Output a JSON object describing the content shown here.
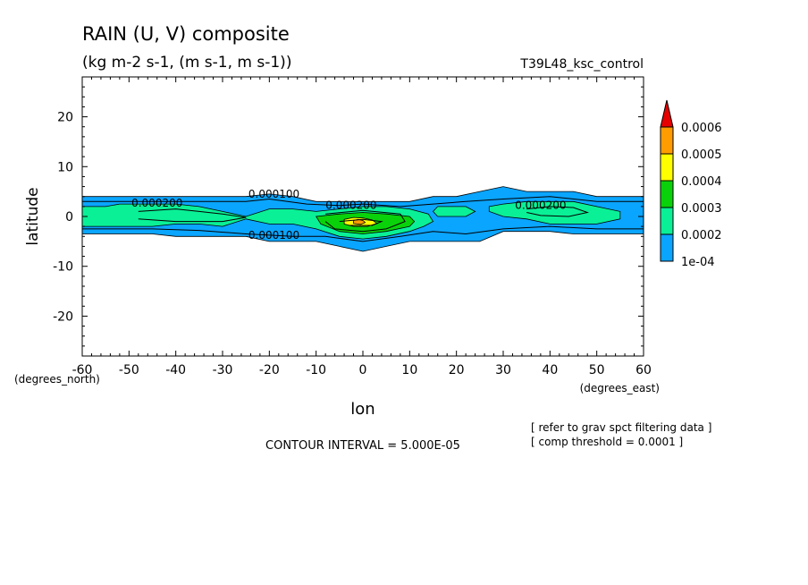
{
  "chart_data": {
    "type": "contour",
    "title": "RAIN (U, V) composite",
    "subtitle": "(kg m-2 s-1, (m s-1, m s-1))",
    "run_label": "T39L48_ksc_control",
    "xlabel": "lon",
    "ylabel": "latitude",
    "x_unit_label": "(degrees_east)",
    "y_unit_label": "(degrees_north)",
    "xlim": [
      -60,
      60
    ],
    "ylim": [
      -28,
      28
    ],
    "xticks": [
      -60,
      -50,
      -40,
      -30,
      -20,
      -10,
      0,
      10,
      20,
      30,
      40,
      50,
      60
    ],
    "yticks": [
      -20,
      -10,
      0,
      10,
      20
    ],
    "contour_interval_text": "CONTOUR INTERVAL = 5.000E-05",
    "notes": [
      "[ refer to grav spct filtering data ]",
      "[ comp threshold = 0.0001 ]"
    ],
    "colorbar": {
      "levels": [
        "1e-04",
        "0.0002",
        "0.0003",
        "0.0004",
        "0.0005",
        "0.0006"
      ],
      "colors": [
        "#0aa5ff",
        "#0af096",
        "#0ad20a",
        "#ffff00",
        "#ff9c00",
        "#e60000"
      ]
    },
    "contour_labels": [
      {
        "text": "0.000200",
        "lon": -44,
        "lat": 2
      },
      {
        "text": "0.000100",
        "lon": -19,
        "lat": 3.8
      },
      {
        "text": "0.000200",
        "lon": -2.5,
        "lat": 1.5
      },
      {
        "text": "0.000200",
        "lon": 38,
        "lat": 1.5
      },
      {
        "text": "0.000100",
        "lon": -19,
        "lat": -4.5
      }
    ],
    "filled_regions": [
      {
        "level": "1e-04",
        "color": "#0aa5ff",
        "boundary": [
          [
            -60,
            4
          ],
          [
            -55,
            4
          ],
          [
            -50,
            4
          ],
          [
            -45,
            4
          ],
          [
            -40,
            4
          ],
          [
            -35,
            4
          ],
          [
            -30,
            4
          ],
          [
            -25,
            4
          ],
          [
            -20,
            4.5
          ],
          [
            -15,
            4
          ],
          [
            -10,
            3
          ],
          [
            -5,
            3
          ],
          [
            0,
            3
          ],
          [
            5,
            3
          ],
          [
            10,
            3
          ],
          [
            15,
            4
          ],
          [
            20,
            4
          ],
          [
            25,
            5
          ],
          [
            30,
            6
          ],
          [
            35,
            5
          ],
          [
            40,
            5
          ],
          [
            45,
            5
          ],
          [
            50,
            4
          ],
          [
            55,
            4
          ],
          [
            60,
            4
          ],
          [
            60,
            -3.5
          ],
          [
            55,
            -3.5
          ],
          [
            50,
            -3.5
          ],
          [
            45,
            -3.5
          ],
          [
            40,
            -3
          ],
          [
            35,
            -3
          ],
          [
            30,
            -3
          ],
          [
            25,
            -5
          ],
          [
            20,
            -5
          ],
          [
            15,
            -5
          ],
          [
            10,
            -5
          ],
          [
            5,
            -6
          ],
          [
            0,
            -7
          ],
          [
            -5,
            -6
          ],
          [
            -10,
            -5
          ],
          [
            -15,
            -5
          ],
          [
            -20,
            -5
          ],
          [
            -25,
            -4
          ],
          [
            -30,
            -4
          ],
          [
            -35,
            -4
          ],
          [
            -40,
            -4
          ],
          [
            -45,
            -3.5
          ],
          [
            -50,
            -3.5
          ],
          [
            -55,
            -3.5
          ],
          [
            -60,
            -3.5
          ]
        ]
      },
      {
        "level": "0.0002",
        "color": "#0af096",
        "boundary": [
          [
            -60,
            2
          ],
          [
            -55,
            2
          ],
          [
            -52,
            2.5
          ],
          [
            -45,
            2.5
          ],
          [
            -40,
            2.5
          ],
          [
            -35,
            2
          ],
          [
            -30,
            1
          ],
          [
            -25,
            0
          ],
          [
            -20,
            1.5
          ],
          [
            -15,
            1.5
          ],
          [
            -10,
            1
          ],
          [
            -5,
            1.5
          ],
          [
            0,
            2
          ],
          [
            5,
            2
          ],
          [
            10,
            1.5
          ],
          [
            14,
            0.5
          ],
          [
            15,
            -1
          ],
          [
            13,
            -2
          ],
          [
            10,
            -3
          ],
          [
            5,
            -4
          ],
          [
            0,
            -4.5
          ],
          [
            -5,
            -4
          ],
          [
            -10,
            -2.5
          ],
          [
            -15,
            -1.5
          ],
          [
            -20,
            -1.5
          ],
          [
            -25,
            -0.5
          ],
          [
            -30,
            -2
          ],
          [
            -35,
            -1.5
          ],
          [
            -40,
            -1.5
          ],
          [
            -45,
            -2
          ],
          [
            -50,
            -2
          ],
          [
            -55,
            -2
          ],
          [
            -60,
            -2
          ]
        ]
      },
      {
        "level": "0.0002",
        "color": "#0af096",
        "boundary": [
          [
            16,
            2
          ],
          [
            22,
            2
          ],
          [
            24,
            1
          ],
          [
            22,
            0
          ],
          [
            16,
            0
          ],
          [
            15,
            1
          ]
        ]
      },
      {
        "level": "0.0002",
        "color": "#0af096",
        "boundary": [
          [
            27,
            2
          ],
          [
            30,
            2.5
          ],
          [
            35,
            3
          ],
          [
            40,
            3
          ],
          [
            45,
            3
          ],
          [
            50,
            2
          ],
          [
            55,
            1
          ],
          [
            55,
            -0.5
          ],
          [
            50,
            -1.5
          ],
          [
            45,
            -1.5
          ],
          [
            40,
            -1.5
          ],
          [
            35,
            -0.5
          ],
          [
            30,
            0
          ],
          [
            27,
            1
          ]
        ]
      },
      {
        "level": "0.0003",
        "color": "#0ad20a",
        "boundary": [
          [
            -10,
            0
          ],
          [
            -5,
            0.5
          ],
          [
            0,
            0.8
          ],
          [
            5,
            0.5
          ],
          [
            10,
            0
          ],
          [
            11,
            -1
          ],
          [
            10,
            -2
          ],
          [
            5,
            -3
          ],
          [
            0,
            -3.5
          ],
          [
            -5,
            -3
          ],
          [
            -9,
            -1.5
          ]
        ]
      },
      {
        "level": "0.0004",
        "color": "#ffff00",
        "boundary": [
          [
            -4,
            -0.6
          ],
          [
            -2,
            -0.2
          ],
          [
            0,
            -0.3
          ],
          [
            2,
            -0.7
          ],
          [
            3,
            -1.4
          ],
          [
            1,
            -2
          ],
          [
            -2,
            -2
          ],
          [
            -4,
            -1.5
          ]
        ]
      },
      {
        "level": "0.0005",
        "color": "#ff9c00",
        "boundary": [
          [
            -2,
            -0.8
          ],
          [
            -1,
            -0.6
          ],
          [
            0,
            -0.8
          ],
          [
            0.5,
            -1.2
          ],
          [
            -0.5,
            -1.6
          ],
          [
            -2,
            -1.4
          ]
        ]
      }
    ],
    "contour_lines": [
      [
        [
          -60,
          3
        ],
        [
          -45,
          3
        ],
        [
          -35,
          3
        ],
        [
          -25,
          3
        ],
        [
          -20,
          3.5
        ],
        [
          -12,
          2.5
        ],
        [
          -5,
          2.2
        ],
        [
          0,
          2.5
        ],
        [
          8,
          2
        ],
        [
          15,
          2.5
        ],
        [
          22,
          3
        ],
        [
          30,
          3.5
        ],
        [
          40,
          4
        ],
        [
          50,
          3
        ],
        [
          60,
          3
        ]
      ],
      [
        [
          -60,
          -2.5
        ],
        [
          -45,
          -2.5
        ],
        [
          -35,
          -2.8
        ],
        [
          -25,
          -3.5
        ],
        [
          -15,
          -4
        ],
        [
          -8,
          -4
        ],
        [
          0,
          -5
        ],
        [
          8,
          -4
        ],
        [
          15,
          -3
        ],
        [
          22,
          -3.5
        ],
        [
          30,
          -2.5
        ],
        [
          40,
          -2
        ],
        [
          50,
          -2.5
        ],
        [
          60,
          -2.5
        ]
      ],
      [
        [
          -48,
          1
        ],
        [
          -40,
          1.5
        ],
        [
          -35,
          1
        ],
        [
          -30,
          0.5
        ],
        [
          -25,
          -0.2
        ],
        [
          -30,
          -1
        ],
        [
          -40,
          -1
        ],
        [
          -48,
          -0.5
        ]
      ],
      [
        [
          -8,
          0.5
        ],
        [
          0,
          1.2
        ],
        [
          8,
          0.5
        ],
        [
          9,
          -1
        ],
        [
          5,
          -2.5
        ],
        [
          0,
          -3
        ],
        [
          -6,
          -2.5
        ],
        [
          -8,
          -1
        ]
      ],
      [
        [
          35,
          1.5
        ],
        [
          40,
          2
        ],
        [
          45,
          1.8
        ],
        [
          48,
          0.8
        ],
        [
          44,
          0
        ],
        [
          38,
          0.2
        ],
        [
          35,
          0.8
        ]
      ],
      [
        [
          -5,
          -1
        ],
        [
          0,
          -0.6
        ],
        [
          4,
          -1
        ],
        [
          2,
          -1.8
        ],
        [
          -3,
          -1.8
        ]
      ]
    ]
  }
}
